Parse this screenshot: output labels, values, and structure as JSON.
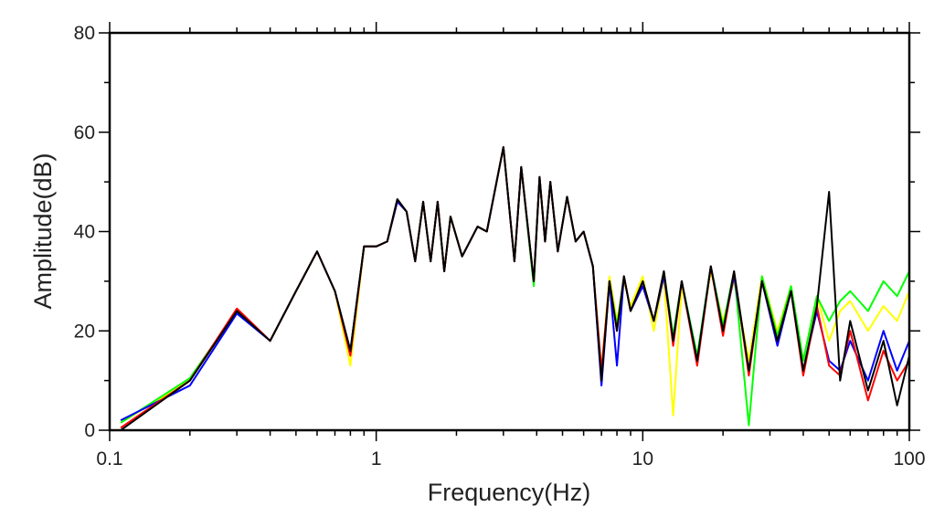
{
  "chart_data": {
    "type": "line",
    "xlabel": "Frequency(Hz)",
    "ylabel": "Amplitude(dB)",
    "xscale": "log",
    "xlim": [
      0.1,
      100
    ],
    "xticks": [
      0.1,
      1,
      10,
      100
    ],
    "xminorticks": [
      0.2,
      0.3,
      0.4,
      0.5,
      0.6,
      0.7,
      0.8,
      0.9,
      2,
      3,
      4,
      5,
      6,
      7,
      8,
      9,
      20,
      30,
      40,
      50,
      60,
      70,
      80,
      90
    ],
    "ylim": [
      0,
      80
    ],
    "yticks": [
      0,
      20,
      40,
      60,
      80
    ],
    "yminorticks": [
      10,
      30,
      50,
      70
    ],
    "x": [
      0.11,
      0.2,
      0.3,
      0.4,
      0.5,
      0.6,
      0.7,
      0.8,
      0.9,
      1.0,
      1.1,
      1.2,
      1.3,
      1.4,
      1.5,
      1.6,
      1.7,
      1.8,
      1.9,
      2.1,
      2.4,
      2.6,
      3.0,
      3.3,
      3.5,
      3.9,
      4.1,
      4.3,
      4.5,
      4.8,
      5.2,
      5.6,
      6.0,
      6.5,
      7,
      7.5,
      8,
      8.5,
      9,
      10,
      11,
      12,
      13,
      14,
      16,
      18,
      20,
      22,
      25,
      28,
      32,
      36,
      40,
      45,
      50,
      55,
      60,
      70,
      80,
      90,
      100
    ],
    "series": [
      {
        "color": "#ffff00",
        "values": [
          1.5,
          10,
          24,
          18,
          28,
          36,
          28,
          13,
          37,
          37,
          38,
          46,
          44,
          34,
          46,
          34,
          46,
          32,
          43,
          35,
          41,
          40,
          57,
          34,
          53,
          30,
          51,
          38,
          50,
          36,
          47,
          38,
          40,
          33,
          12,
          31,
          22,
          30,
          25,
          31,
          20,
          31,
          3,
          29,
          15,
          32,
          22,
          30,
          14,
          31,
          20,
          29,
          14,
          27,
          18,
          24,
          26,
          20,
          25,
          22,
          28
        ]
      },
      {
        "color": "#00ff00",
        "values": [
          1.5,
          10.5,
          24,
          18,
          28,
          36,
          28,
          16,
          37,
          37,
          38,
          46.5,
          44,
          34,
          46,
          34,
          46,
          32,
          43,
          35,
          41,
          40,
          57,
          34,
          53,
          29,
          51,
          38,
          50,
          36,
          47,
          38,
          40,
          33,
          11,
          30,
          21,
          31,
          24,
          30,
          22,
          32,
          19,
          30,
          15,
          33,
          21,
          32,
          1,
          31,
          19,
          29,
          14,
          27,
          22,
          26,
          28,
          24,
          30,
          27,
          32
        ]
      },
      {
        "color": "#0000ff",
        "values": [
          2,
          9,
          23.5,
          18,
          28,
          36,
          28,
          16,
          37,
          37,
          38,
          46,
          44,
          34,
          46,
          34,
          46,
          32,
          43,
          35,
          41,
          40,
          57,
          34,
          53,
          30,
          51,
          38,
          50,
          36,
          47,
          38,
          40,
          33,
          9,
          30,
          13,
          31,
          24,
          29,
          22,
          31,
          18,
          30,
          14,
          33,
          20,
          31,
          12,
          30,
          17,
          28,
          12,
          24,
          14,
          12,
          18,
          10,
          20,
          12,
          18
        ]
      },
      {
        "color": "#ff0000",
        "values": [
          0.5,
          10,
          24.5,
          18,
          28,
          36,
          28,
          15,
          37,
          37,
          38,
          46.5,
          44,
          34,
          46,
          34,
          46,
          32,
          43,
          35,
          41,
          40,
          57,
          34,
          53,
          30,
          51,
          38,
          50,
          36,
          47,
          38,
          40,
          33,
          12,
          30,
          20,
          31,
          24,
          30,
          22,
          32,
          17,
          30,
          13,
          33,
          19,
          32,
          11,
          30,
          18,
          28,
          11,
          25,
          13,
          11,
          20,
          6,
          16,
          10,
          14
        ]
      },
      {
        "color": "#000000",
        "values": [
          0,
          10,
          24,
          18,
          28,
          36,
          28,
          16,
          37,
          37,
          38,
          46.5,
          44,
          34,
          46,
          34,
          46,
          32,
          43,
          35,
          41,
          40,
          57,
          34,
          53,
          30,
          51,
          38,
          50,
          36,
          47,
          38,
          40,
          33,
          10,
          30,
          20,
          31,
          24,
          30,
          22,
          32,
          18,
          30,
          14,
          33,
          20,
          32,
          12,
          30,
          18,
          28,
          12,
          25,
          48,
          10,
          22,
          8,
          18,
          5,
          15
        ]
      }
    ]
  }
}
